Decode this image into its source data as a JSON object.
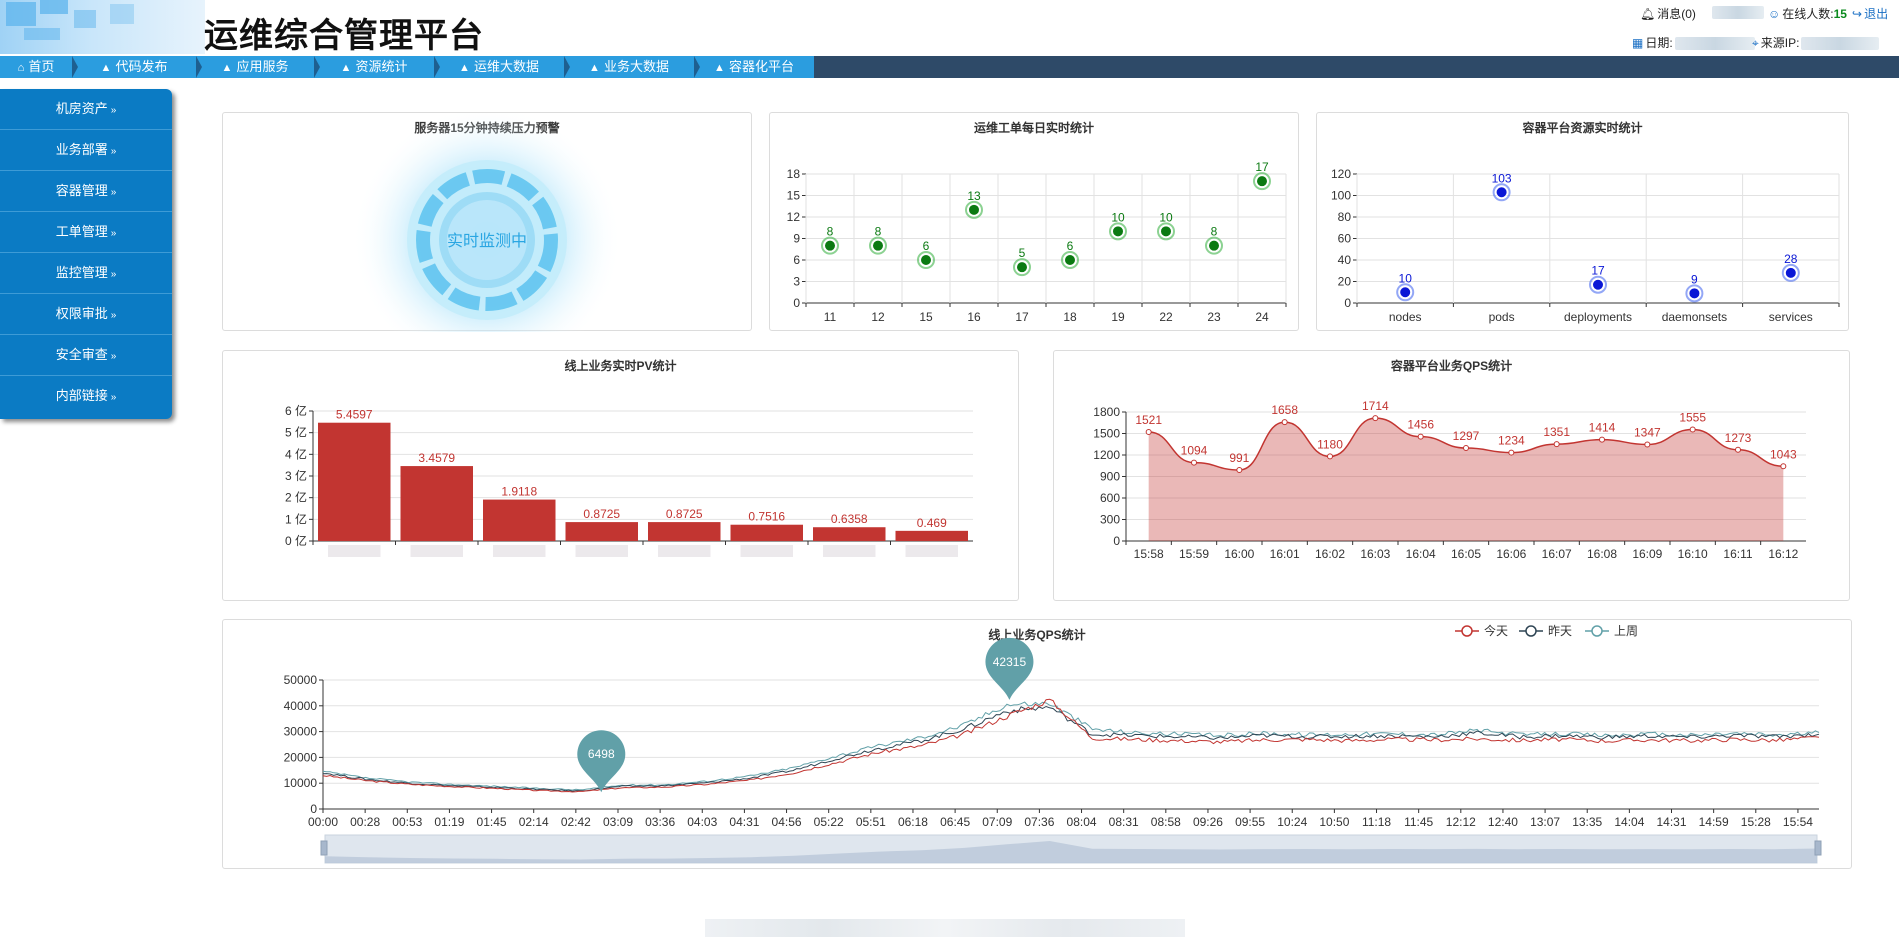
{
  "header": {
    "title": "运维综合管理平台",
    "messages_label": "消息(0)",
    "online_label": "在线人数:",
    "online_count": "15",
    "logout_label": "退出",
    "date_label": "日期:",
    "source_ip_label": "来源IP:"
  },
  "nav": {
    "items": [
      {
        "label": "首页",
        "icon": "home-icon"
      },
      {
        "label": "代码发布",
        "icon": "triangle-warning-icon"
      },
      {
        "label": "应用服务",
        "icon": "triangle-warning-icon"
      },
      {
        "label": "资源统计",
        "icon": "triangle-warning-icon"
      },
      {
        "label": "运维大数据",
        "icon": "triangle-warning-icon"
      },
      {
        "label": "业务大数据",
        "icon": "triangle-warning-icon"
      },
      {
        "label": "容器化平台",
        "icon": "triangle-warning-icon"
      }
    ]
  },
  "sidebar": {
    "items": [
      {
        "label": "机房资产"
      },
      {
        "label": "业务部署"
      },
      {
        "label": "容器管理"
      },
      {
        "label": "工单管理"
      },
      {
        "label": "监控管理"
      },
      {
        "label": "权限审批"
      },
      {
        "label": "安全审查"
      },
      {
        "label": "内部链接"
      }
    ]
  },
  "panels": {
    "pressure": {
      "title": "服务器15分钟持续压力预警",
      "status": "实时监测中"
    },
    "workorder": {
      "title": "运维工单每日实时统计"
    },
    "container": {
      "title": "容器平台资源实时统计"
    },
    "pv": {
      "title": "线上业务实时PV统计"
    },
    "qps_container": {
      "title": "容器平台业务QPS统计"
    },
    "qps_online": {
      "title": "线上业务QPS统计"
    }
  },
  "colors": {
    "accent": "#2b9ddf",
    "nav_bg": "#2e4a68",
    "sidebar": "#0b7bc4",
    "green": "#0b7a12",
    "blue": "#0a17d6",
    "red": "#c23531",
    "today": "#c23531",
    "yesterday": "#2f4554",
    "lastweek": "#61a0a8"
  },
  "chart_data": [
    {
      "id": "workorder",
      "type": "scatter",
      "categories": [
        "11",
        "12",
        "15",
        "16",
        "17",
        "18",
        "19",
        "22",
        "23",
        "24"
      ],
      "values": [
        8,
        8,
        6,
        13,
        5,
        6,
        10,
        10,
        8,
        17
      ],
      "ylim": [
        0,
        18
      ],
      "yticks": [
        0,
        3,
        6,
        9,
        12,
        15,
        18
      ]
    },
    {
      "id": "container",
      "type": "scatter",
      "categories": [
        "nodes",
        "pods",
        "deployments",
        "daemonsets",
        "services"
      ],
      "values": [
        10,
        103,
        17,
        9,
        28
      ],
      "ylim": [
        0,
        120
      ],
      "yticks": [
        0,
        20,
        40,
        60,
        80,
        100,
        120
      ]
    },
    {
      "id": "pv",
      "type": "bar",
      "values": [
        5.4597,
        3.4579,
        1.9118,
        0.8725,
        0.8725,
        0.7516,
        0.6358,
        0.469
      ],
      "ylim": [
        0,
        6
      ],
      "yticks": [
        "0 亿",
        "1 亿",
        "2 亿",
        "3 亿",
        "4 亿",
        "5 亿",
        "6 亿"
      ]
    },
    {
      "id": "qps_container",
      "type": "area",
      "categories": [
        "15:58",
        "15:59",
        "16:00",
        "16:01",
        "16:02",
        "16:03",
        "16:04",
        "16:05",
        "16:06",
        "16:07",
        "16:08",
        "16:09",
        "16:10",
        "16:11",
        "16:12"
      ],
      "values": [
        1521,
        1094,
        991,
        1658,
        1180,
        1714,
        1456,
        1297,
        1234,
        1351,
        1414,
        1347,
        1555,
        1273,
        1043
      ],
      "ylim": [
        0,
        1800
      ],
      "yticks": [
        0,
        300,
        600,
        900,
        1200,
        1500,
        1800
      ]
    },
    {
      "id": "qps_online",
      "type": "line",
      "xticks": [
        "00:00",
        "00:28",
        "00:53",
        "01:19",
        "01:45",
        "02:14",
        "02:42",
        "03:09",
        "03:36",
        "04:03",
        "04:31",
        "04:56",
        "05:22",
        "05:51",
        "06:18",
        "06:45",
        "07:09",
        "07:36",
        "08:04",
        "08:31",
        "08:58",
        "09:26",
        "09:55",
        "10:24",
        "10:50",
        "11:18",
        "11:45",
        "12:12",
        "12:40",
        "13:07",
        "13:35",
        "14:04",
        "14:31",
        "14:59",
        "15:28",
        "15:54"
      ],
      "ylim": [
        0,
        50000
      ],
      "yticks": [
        0,
        10000,
        20000,
        30000,
        40000,
        50000
      ],
      "legend": [
        "今天",
        "昨天",
        "上周"
      ],
      "markers": [
        {
          "label": "6498",
          "at": "03:00",
          "value": 6498
        },
        {
          "label": "42315",
          "at": "07:24",
          "value": 42315
        }
      ],
      "series": [
        {
          "name": "今天",
          "values": [
            13000,
            11000,
            9600,
            8700,
            8000,
            7200,
            6700,
            8200,
            8500,
            9600,
            11200,
            14000,
            18000,
            22000,
            24500,
            29000,
            36000,
            42315,
            27500,
            27000,
            26500,
            26000,
            26800,
            27000,
            26500,
            27000,
            26800,
            27200,
            26600,
            27000,
            26400,
            26800,
            26500,
            27000,
            26600,
            27800
          ]
        },
        {
          "name": "昨天",
          "values": [
            14000,
            11500,
            10000,
            9000,
            8400,
            7600,
            7000,
            8800,
            9000,
            10200,
            12000,
            15000,
            19500,
            23500,
            26500,
            31000,
            38000,
            39500,
            29000,
            28500,
            28000,
            27500,
            28500,
            28000,
            28200,
            28400,
            28000,
            29500,
            28000,
            28400,
            27800,
            28300,
            27800,
            28500,
            28000,
            29000
          ]
        },
        {
          "name": "上周",
          "values": [
            14500,
            12000,
            10500,
            9500,
            8800,
            8000,
            7400,
            9200,
            9400,
            10800,
            12800,
            16000,
            20500,
            24500,
            27800,
            32500,
            40500,
            41000,
            31000,
            29500,
            29000,
            28500,
            29400,
            28800,
            29000,
            29200,
            28800,
            30500,
            28800,
            29200,
            28500,
            29000,
            28600,
            29300,
            28700,
            29600
          ]
        }
      ]
    }
  ]
}
